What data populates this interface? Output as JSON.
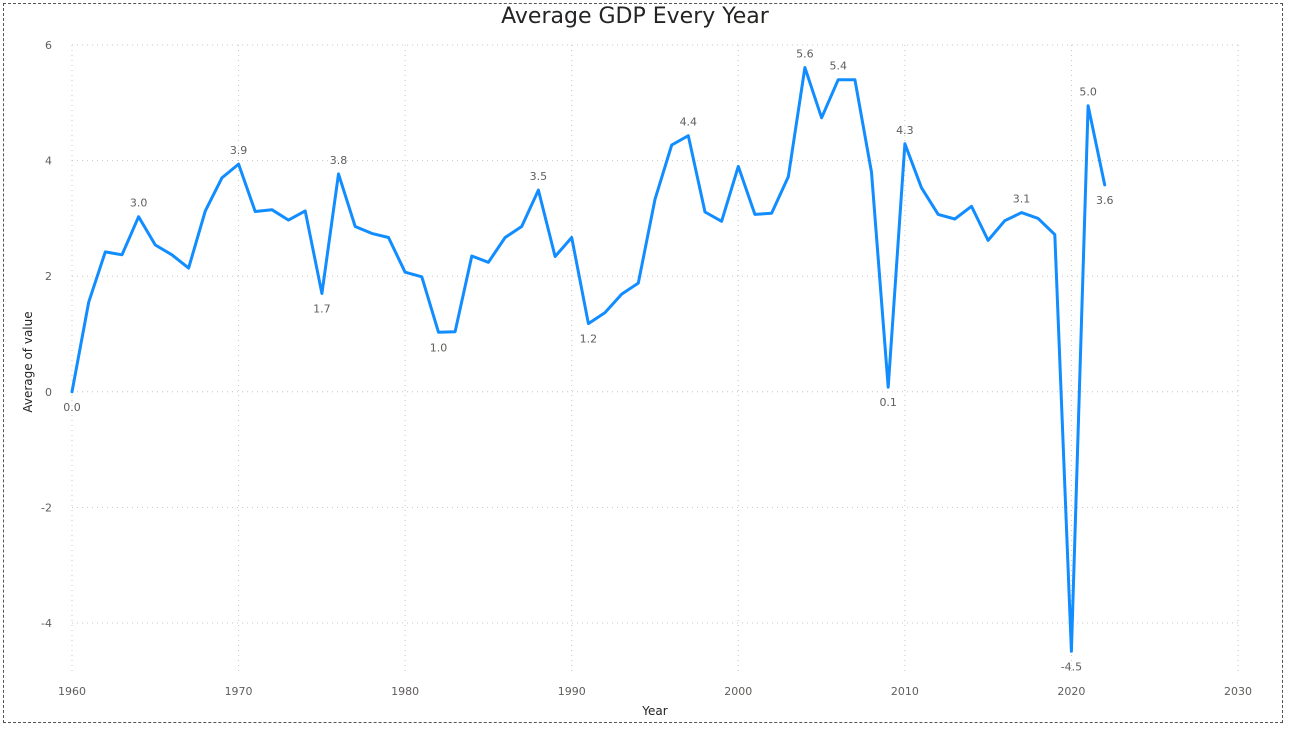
{
  "chart_data": {
    "type": "line",
    "title": "Average GDP Every Year",
    "xlabel": "Year",
    "ylabel": "Average of value",
    "xlim": [
      1960,
      2030
    ],
    "ylim": [
      -5,
      6
    ],
    "xticks": [
      1960,
      1970,
      1980,
      1990,
      2000,
      2010,
      2020,
      2030
    ],
    "yticks": [
      -4,
      -2,
      0,
      2,
      4,
      6
    ],
    "grid": true,
    "line_color": "#118DFF",
    "series": [
      {
        "x": [
          1960,
          1961,
          1962,
          1963,
          1964,
          1965,
          1966,
          1967,
          1968,
          1969,
          1970,
          1971,
          1972,
          1973,
          1974,
          1975,
          1976,
          1977,
          1978,
          1979,
          1980,
          1981,
          1982,
          1983,
          1984,
          1985,
          1986,
          1987,
          1988,
          1989,
          1990,
          1991,
          1992,
          1993,
          1994,
          1995,
          1996,
          1997,
          1998,
          1999,
          2000,
          2001,
          2002,
          2003,
          2004,
          2005,
          2006,
          2007,
          2008,
          2009,
          2010,
          2011,
          2012,
          2013,
          2014,
          2015,
          2016,
          2017,
          2018,
          2019,
          2020,
          2021,
          2022
        ],
        "values": [
          0.0,
          1.55,
          2.42,
          2.37,
          3.03,
          2.54,
          2.37,
          2.14,
          3.13,
          3.7,
          3.94,
          3.12,
          3.15,
          2.97,
          3.13,
          1.7,
          3.77,
          2.86,
          2.74,
          2.67,
          2.07,
          1.99,
          1.03,
          1.04,
          2.35,
          2.24,
          2.67,
          2.86,
          3.49,
          2.34,
          2.67,
          1.18,
          1.37,
          1.69,
          1.88,
          3.33,
          4.27,
          4.43,
          3.11,
          2.95,
          3.9,
          3.07,
          3.09,
          3.72,
          5.61,
          4.74,
          5.4,
          5.4,
          3.8,
          0.08,
          4.29,
          3.53,
          3.07,
          2.99,
          3.21,
          2.62,
          2.96,
          3.1,
          3.0,
          2.72,
          -4.49,
          4.95,
          3.58
        ]
      }
    ],
    "data_labels": [
      {
        "x": 1960,
        "y": 0.0,
        "text": "0.0",
        "pos": "below"
      },
      {
        "x": 1964,
        "y": 3.03,
        "text": "3.0",
        "pos": "above"
      },
      {
        "x": 1970,
        "y": 3.94,
        "text": "3.9",
        "pos": "above"
      },
      {
        "x": 1975,
        "y": 1.7,
        "text": "1.7",
        "pos": "below"
      },
      {
        "x": 1976,
        "y": 3.77,
        "text": "3.8",
        "pos": "above"
      },
      {
        "x": 1982,
        "y": 1.03,
        "text": "1.0",
        "pos": "below"
      },
      {
        "x": 1988,
        "y": 3.49,
        "text": "3.5",
        "pos": "above"
      },
      {
        "x": 1991,
        "y": 1.18,
        "text": "1.2",
        "pos": "below"
      },
      {
        "x": 1997,
        "y": 4.43,
        "text": "4.4",
        "pos": "above"
      },
      {
        "x": 2004,
        "y": 5.61,
        "text": "5.6",
        "pos": "above"
      },
      {
        "x": 2006,
        "y": 5.4,
        "text": "5.4",
        "pos": "above"
      },
      {
        "x": 2009,
        "y": 0.08,
        "text": "0.1",
        "pos": "below"
      },
      {
        "x": 2010,
        "y": 4.29,
        "text": "4.3",
        "pos": "above"
      },
      {
        "x": 2017,
        "y": 3.1,
        "text": "3.1",
        "pos": "above"
      },
      {
        "x": 2020,
        "y": -4.49,
        "text": "-4.5",
        "pos": "below"
      },
      {
        "x": 2021,
        "y": 4.95,
        "text": "5.0",
        "pos": "above"
      },
      {
        "x": 2022,
        "y": 3.58,
        "text": "3.6",
        "pos": "below"
      }
    ]
  }
}
